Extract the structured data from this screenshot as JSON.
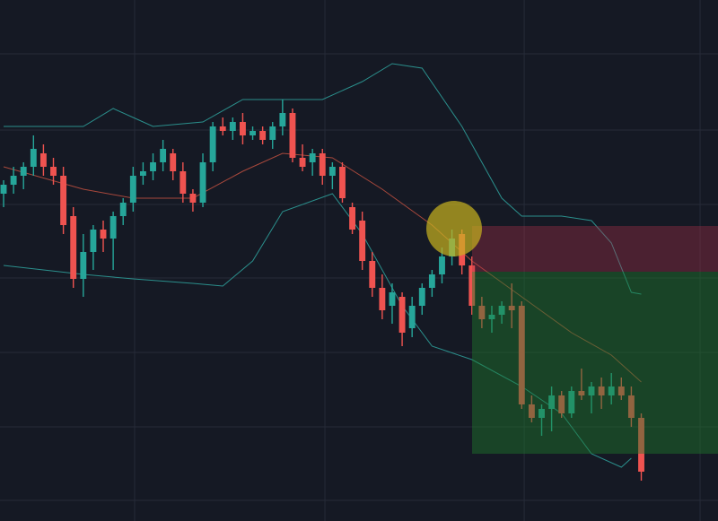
{
  "chart_data": {
    "type": "candlestick",
    "up_color": "#26a69a",
    "down_color": "#ef5350",
    "xlim": [
      -0.36,
      71.7
    ],
    "ylim": [
      0,
      581
    ],
    "xticks": [
      13.15,
      32.25,
      52.25,
      69.9
    ],
    "yticks": [
      23,
      105,
      188,
      271,
      353,
      436,
      521
    ],
    "grid": true,
    "open": [
      365,
      375,
      385,
      395,
      410,
      395,
      385,
      340,
      270,
      300,
      325,
      315,
      340,
      355,
      385,
      390,
      400,
      410,
      390,
      365,
      355,
      400,
      440,
      435,
      445,
      430,
      435,
      425,
      440,
      455,
      405,
      400,
      410,
      385,
      395,
      350,
      335,
      290,
      260,
      240,
      250,
      215,
      240,
      260,
      275,
      295,
      320,
      285,
      240,
      225,
      230,
      240,
      240,
      130,
      115,
      125,
      140,
      120,
      145,
      140,
      150,
      140,
      150,
      140,
      115
    ],
    "high": [
      380,
      395,
      400,
      430,
      420,
      405,
      395,
      350,
      320,
      330,
      335,
      345,
      360,
      395,
      400,
      410,
      425,
      415,
      400,
      370,
      410,
      445,
      450,
      450,
      455,
      440,
      440,
      445,
      470,
      460,
      420,
      415,
      415,
      400,
      400,
      355,
      345,
      300,
      275,
      265,
      255,
      250,
      265,
      280,
      305,
      325,
      325,
      295,
      250,
      240,
      245,
      265,
      245,
      140,
      130,
      150,
      145,
      150,
      170,
      155,
      160,
      165,
      160,
      150,
      120
    ],
    "low": [
      350,
      365,
      370,
      385,
      385,
      375,
      320,
      260,
      250,
      280,
      300,
      280,
      330,
      345,
      375,
      380,
      390,
      380,
      355,
      345,
      350,
      390,
      430,
      425,
      420,
      425,
      420,
      415,
      430,
      400,
      390,
      385,
      375,
      370,
      355,
      320,
      280,
      250,
      225,
      220,
      195,
      205,
      230,
      250,
      265,
      285,
      275,
      230,
      215,
      210,
      220,
      215,
      125,
      110,
      95,
      100,
      115,
      115,
      135,
      120,
      125,
      130,
      135,
      105,
      45
    ],
    "close": [
      375,
      385,
      395,
      415,
      395,
      385,
      330,
      270,
      300,
      325,
      315,
      340,
      355,
      385,
      390,
      400,
      415,
      390,
      365,
      355,
      400,
      440,
      435,
      445,
      430,
      435,
      425,
      440,
      455,
      405,
      395,
      410,
      385,
      395,
      360,
      325,
      290,
      260,
      235,
      255,
      210,
      240,
      260,
      275,
      295,
      315,
      285,
      240,
      225,
      230,
      240,
      235,
      130,
      115,
      125,
      140,
      120,
      145,
      140,
      150,
      140,
      150,
      140,
      115,
      55
    ],
    "bands": [
      {
        "color": "#2b8f8c",
        "x": [
          0,
          8,
          11,
          13,
          15,
          20,
          24,
          32,
          36,
          39,
          42,
          46,
          50,
          52,
          56,
          59,
          61,
          63,
          64
        ],
        "values": [
          440,
          440,
          460,
          450,
          440,
          445,
          470,
          470,
          490,
          510,
          505,
          440,
          360,
          340,
          340,
          335,
          310,
          255,
          253
        ]
      },
      {
        "color": "#a8483c",
        "x": [
          0,
          8,
          13,
          19,
          24,
          28,
          33,
          38,
          43,
          47,
          52,
          57,
          61,
          64
        ],
        "values": [
          395,
          370,
          360,
          360,
          390,
          410,
          405,
          370,
          330,
          290,
          250,
          210,
          185,
          155
        ]
      },
      {
        "color": "#2b8f8c",
        "x": [
          0,
          8,
          13,
          19,
          22,
          25,
          28,
          33,
          36,
          40,
          43,
          47,
          52,
          56,
          59,
          62,
          63
        ],
        "values": [
          285,
          275,
          270,
          265,
          262,
          290,
          345,
          365,
          320,
          240,
          195,
          180,
          150,
          120,
          75,
          60,
          70
        ]
      }
    ]
  }
}
